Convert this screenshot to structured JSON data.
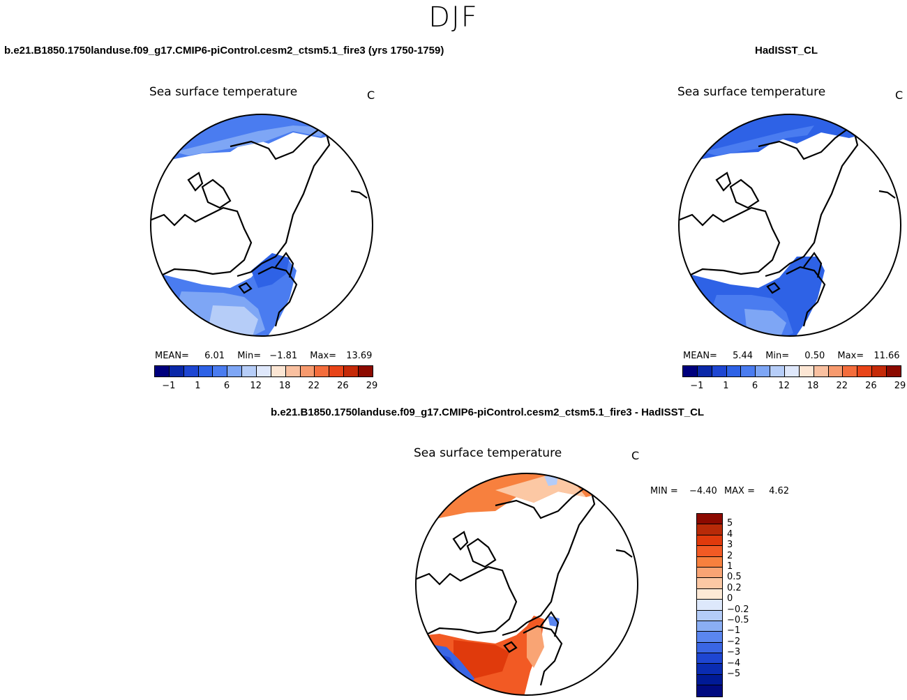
{
  "season": "DJF",
  "panels": {
    "model": {
      "case_title": "b.e21.B1850.1750landuse.f09_g17.CMIP6-piControl.cesm2_ctsm5.1_fire3 (yrs 1750-1759)",
      "var_title": "Sea surface temperature",
      "units": "C",
      "stats": {
        "mean_label": "MEAN=",
        "mean": "6.01",
        "min_label": "Min=",
        "min": "−1.81",
        "max_label": "Max=",
        "max": "13.69"
      }
    },
    "obs": {
      "case_title": "HadISST_CL",
      "var_title": "Sea surface temperature",
      "units": "C",
      "stats": {
        "mean_label": "MEAN=",
        "mean": "5.44",
        "min_label": "Min=",
        "min": "0.50",
        "max_label": "Max=",
        "max": "11.66"
      }
    },
    "diff": {
      "case_title": "b.e21.B1850.1750landuse.f09_g17.CMIP6-piControl.cesm2_ctsm5.1_fire3 - HadISST_CL",
      "var_title": "Sea surface temperature",
      "units": "C",
      "stats": {
        "min_label": "MIN =",
        "min": "−4.40",
        "max_label": "MAX =",
        "max": "4.62"
      }
    }
  },
  "colorbar_abs": {
    "colors": [
      "#00007d",
      "#0a28a8",
      "#1e46d2",
      "#2e62e6",
      "#4a7cf0",
      "#7ea6f5",
      "#b6cdf8",
      "#dfe8fb",
      "#fce6d4",
      "#f9c0a0",
      "#f79a6e",
      "#f46d3c",
      "#e84418",
      "#c52a08",
      "#8c0a00"
    ],
    "tick_labels": [
      "−1",
      "1",
      "6",
      "12",
      "18",
      "22",
      "26",
      "29"
    ]
  },
  "colorbar_diff": {
    "colors": [
      "#8c0a00",
      "#b82a08",
      "#e03a0c",
      "#f25a24",
      "#f7803e",
      "#f9a474",
      "#fcc8a4",
      "#fde9d6",
      "#dde8fb",
      "#b4ccf8",
      "#8aaef4",
      "#5a86f0",
      "#3a66e4",
      "#1e46d2",
      "#0a2cb2",
      "#001a96",
      "#000a80"
    ],
    "tick_labels": [
      "5",
      "4",
      "3",
      "2",
      "1",
      "0.5",
      "0.2",
      "0",
      "−0.2",
      "−0.5",
      "−1",
      "−2",
      "−3",
      "−4",
      "−5"
    ]
  }
}
